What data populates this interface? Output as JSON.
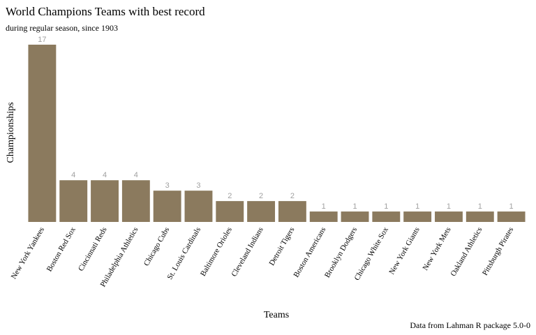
{
  "chart_data": {
    "type": "bar",
    "title": "World Champions Teams with best record",
    "subtitle": "during regular season, since 1903",
    "xlabel": "Teams",
    "ylabel": "Championships",
    "caption": "Data from Lahman R package 5.0-0",
    "categories": [
      "New York Yankees",
      "Boston Red Sox",
      "Cincinnati Reds",
      "Philadelphia Athletics",
      "Chicago Cubs",
      "St. Louis Cardinals",
      "Baltimore Orioles",
      "Cleveland Indians",
      "Detroit Tigers",
      "Boston Americans",
      "Brooklyn Dodgers",
      "Chicago White Sox",
      "New York Giants",
      "New York Mets",
      "Oakland Athletics",
      "Pittsburgh Pirates"
    ],
    "values": [
      17,
      4,
      4,
      4,
      3,
      3,
      2,
      2,
      2,
      1,
      1,
      1,
      1,
      1,
      1,
      1
    ],
    "ylim": [
      0,
      17
    ],
    "grid": false,
    "legend": "none",
    "bar_color": "#8b7a5e",
    "label_color": "#a0a0a0",
    "text_color": "#000000"
  }
}
